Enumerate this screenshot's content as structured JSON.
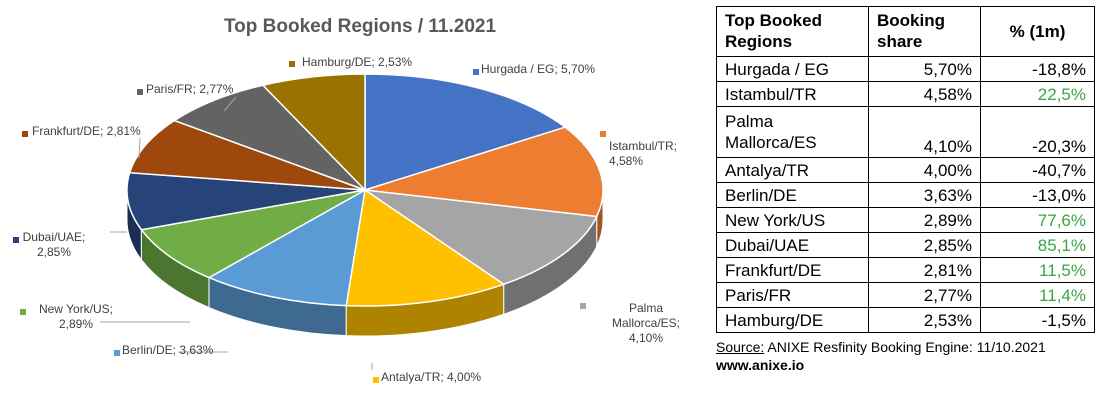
{
  "chart_data": {
    "type": "pie",
    "title": "Top Booked Regions / 11.2021",
    "slices": [
      {
        "label": "Hurgada / EG; 5,70%",
        "name": "Hurgada / EG",
        "value": 5.7,
        "color": "#4472c4"
      },
      {
        "label": "Istambul/TR; 4,58%",
        "name": "Istambul/TR",
        "value": 4.58,
        "color": "#ed7d31"
      },
      {
        "label": "Palma Mallorca/ES; 4,10%",
        "name": "Palma Mallorca/ES",
        "value": 4.1,
        "color": "#a5a5a5"
      },
      {
        "label": "Antalya/TR; 4,00%",
        "name": "Antalya/TR",
        "value": 4.0,
        "color": "#ffc000"
      },
      {
        "label": "Berlin/DE; 3,63%",
        "name": "Berlin/DE",
        "value": 3.63,
        "color": "#5b9bd5"
      },
      {
        "label": "New York/US; 2,89%",
        "name": "New York/US",
        "value": 2.89,
        "color": "#70ad47"
      },
      {
        "label": "Dubai/UAE; 2,85%",
        "name": "Dubai/UAE",
        "value": 2.85,
        "color": "#264478"
      },
      {
        "label": "Frankfurt/DE; 2,81%",
        "name": "Frankfurt/DE",
        "value": 2.81,
        "color": "#9e480e"
      },
      {
        "label": "Paris/FR; 2,77%",
        "name": "Paris/FR",
        "value": 2.77,
        "color": "#636363"
      },
      {
        "label": "Hamburg/DE; 2,53%",
        "name": "Hamburg/DE",
        "value": 2.53,
        "color": "#997300"
      }
    ]
  },
  "table": {
    "headers": [
      "Top Booked Regions",
      "Booking share",
      "% (1m)"
    ],
    "rows": [
      {
        "region": "Hurgada / EG",
        "share": "5,70%",
        "change": "-18,8%",
        "positive": false
      },
      {
        "region": "Istambul/TR",
        "share": "4,58%",
        "change": "22,5%",
        "positive": true
      },
      {
        "region": "Palma Mallorca/ES",
        "share": "4,10%",
        "change": "-20,3%",
        "positive": false
      },
      {
        "region": "Antalya/TR",
        "share": "4,00%",
        "change": "-40,7%",
        "positive": false
      },
      {
        "region": "Berlin/DE",
        "share": "3,63%",
        "change": "-13,0%",
        "positive": false
      },
      {
        "region": "New York/US",
        "share": "2,89%",
        "change": "77,6%",
        "positive": true
      },
      {
        "region": "Dubai/UAE",
        "share": "2,85%",
        "change": "85,1%",
        "positive": true
      },
      {
        "region": "Frankfurt/DE",
        "share": "2,81%",
        "change": "11,5%",
        "positive": true
      },
      {
        "region": "Paris/FR",
        "share": "2,77%",
        "change": "11,4%",
        "positive": true
      },
      {
        "region": "Hamburg/DE",
        "share": "2,53%",
        "change": "-1,5%",
        "positive": false
      }
    ]
  },
  "footer": {
    "source_label": "Source:",
    "source_text": "ANIXE Resfinity Booking Engine: 11/10.2021",
    "url": "www.anixe.io"
  }
}
